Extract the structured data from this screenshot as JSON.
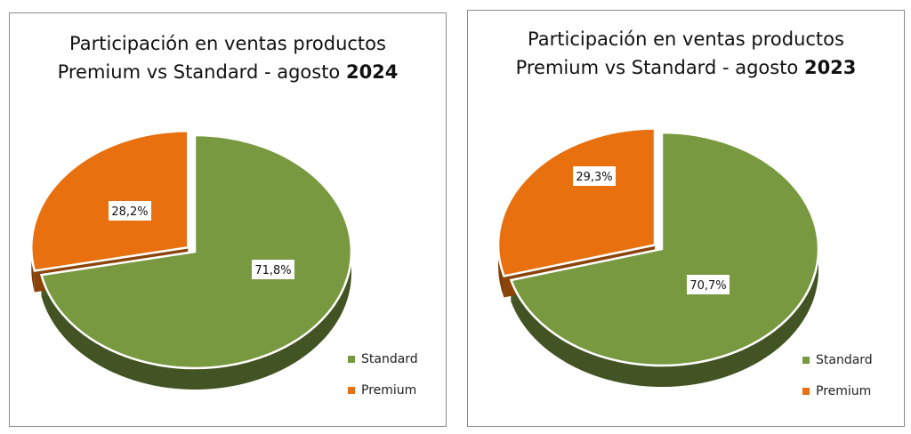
{
  "chart_data": [
    {
      "type": "pie",
      "title_line1": "Participación en ventas productos",
      "title_line2_prefix": "Premium vs Standard - agosto ",
      "title_year": "2024",
      "categories": [
        "Standard",
        "Premium"
      ],
      "values": [
        71.8,
        28.2
      ],
      "labels": [
        "71,8%",
        "28,2%"
      ],
      "colors": [
        "#78993f",
        "#e8700e"
      ],
      "legend_position": "bottom-right"
    },
    {
      "type": "pie",
      "title_line1": "Participación en ventas productos",
      "title_line2_prefix": "Premium vs Standard - agosto ",
      "title_year": "2023",
      "categories": [
        "Standard",
        "Premium"
      ],
      "values": [
        70.7,
        29.3
      ],
      "labels": [
        "70,7%",
        "29,3%"
      ],
      "colors": [
        "#78993f",
        "#e8700e"
      ],
      "legend_position": "bottom-right"
    }
  ]
}
